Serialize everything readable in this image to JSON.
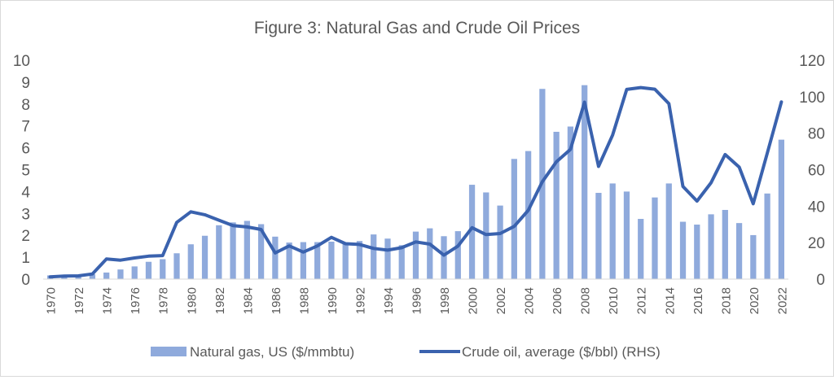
{
  "chart_data": {
    "type": "bar+line",
    "title": "Figure 3: Natural Gas and Crude Oil Prices",
    "xlabel": "",
    "ylabel_left": "",
    "ylabel_right": "",
    "x": [
      1970,
      1971,
      1972,
      1973,
      1974,
      1975,
      1976,
      1977,
      1978,
      1979,
      1980,
      1981,
      1982,
      1983,
      1984,
      1985,
      1986,
      1987,
      1988,
      1989,
      1990,
      1991,
      1992,
      1993,
      1994,
      1995,
      1996,
      1997,
      1998,
      1999,
      2000,
      2001,
      2002,
      2003,
      2004,
      2005,
      2006,
      2007,
      2008,
      2009,
      2010,
      2011,
      2012,
      2013,
      2014,
      2015,
      2016,
      2017,
      2018,
      2019,
      2020,
      2021,
      2022
    ],
    "x_tick_labels": [
      "1970",
      "1972",
      "1974",
      "1976",
      "1978",
      "1980",
      "1982",
      "1984",
      "1986",
      "1988",
      "1990",
      "1992",
      "1994",
      "1996",
      "1998",
      "2000",
      "2002",
      "2004",
      "2006",
      "2008",
      "2010",
      "2012",
      "2014",
      "2016",
      "2018",
      "2020",
      "2022"
    ],
    "ylim_left": [
      0,
      10
    ],
    "yticks_left": [
      "0",
      "1",
      "2",
      "3",
      "4",
      "5",
      "6",
      "7",
      "8",
      "9",
      "10"
    ],
    "ylim_right": [
      0,
      120
    ],
    "yticks_right": [
      "0",
      "20",
      "40",
      "60",
      "80",
      "100",
      "120"
    ],
    "grid": false,
    "legend_position": "bottom",
    "series": [
      {
        "name": "Natural gas, US ($/mmbtu)",
        "type": "bar",
        "axis": "left",
        "color": "#8faadc",
        "values": [
          0.17,
          0.18,
          0.19,
          0.22,
          0.3,
          0.44,
          0.58,
          0.79,
          0.91,
          1.18,
          1.59,
          1.98,
          2.46,
          2.59,
          2.66,
          2.51,
          1.94,
          1.67,
          1.69,
          1.69,
          1.71,
          1.64,
          1.74,
          2.04,
          1.85,
          1.55,
          2.17,
          2.32,
          1.96,
          2.19,
          4.31,
          3.96,
          3.36,
          5.49,
          5.85,
          8.69,
          6.73,
          6.97,
          8.86,
          3.94,
          4.37,
          4.0,
          2.75,
          3.73,
          4.37,
          2.62,
          2.49,
          2.96,
          3.16,
          2.56,
          2.01,
          3.91,
          6.37
        ]
      },
      {
        "name": "Crude oil, average ($/bbl) (RHS)",
        "type": "line",
        "axis": "right",
        "color": "#3a62ae",
        "values": [
          1.2,
          1.7,
          1.8,
          2.8,
          11.0,
          10.4,
          11.6,
          12.6,
          12.9,
          31.1,
          36.9,
          35.3,
          32.3,
          29.3,
          28.6,
          27.2,
          14.3,
          18.2,
          14.8,
          18.2,
          22.9,
          19.4,
          19.0,
          16.8,
          15.9,
          17.2,
          20.4,
          19.2,
          13.1,
          18.1,
          28.2,
          24.4,
          25.0,
          28.9,
          37.7,
          53.4,
          64.3,
          71.1,
          97.0,
          61.8,
          79.0,
          104.0,
          105.0,
          104.1,
          96.2,
          50.8,
          42.8,
          52.8,
          68.3,
          61.4,
          41.3,
          69.1,
          97.1
        ]
      }
    ]
  }
}
